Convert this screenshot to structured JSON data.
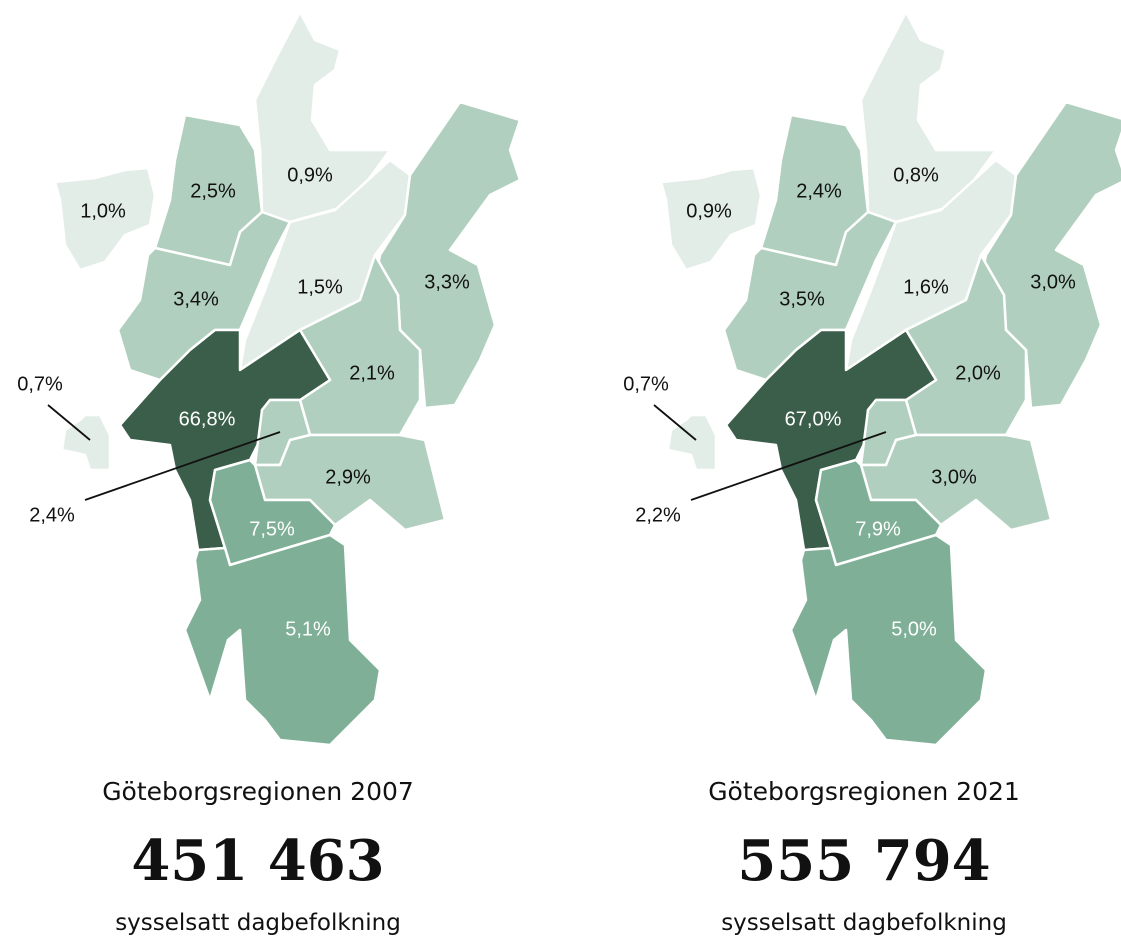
{
  "maps": [
    {
      "title": "Göteborgsregionen 2007",
      "total": "451 463",
      "caption": "sysselsatt dagbefolkning",
      "regions": [
        "1,0%",
        "2,5%",
        "0,9%",
        "3,4%",
        "1,5%",
        "3,3%",
        "2,1%",
        "66,8%",
        "0,7%",
        "2,4%",
        "2,9%",
        "7,5%",
        "5,1%"
      ]
    },
    {
      "title": "Göteborgsregionen 2021",
      "total": "555 794",
      "caption": "sysselsatt dagbefolkning",
      "regions": [
        "0,9%",
        "2,4%",
        "0,8%",
        "3,5%",
        "1,6%",
        "3,0%",
        "2,0%",
        "67,0%",
        "0,7%",
        "2,2%",
        "3,0%",
        "7,9%",
        "5,0%"
      ]
    }
  ]
}
